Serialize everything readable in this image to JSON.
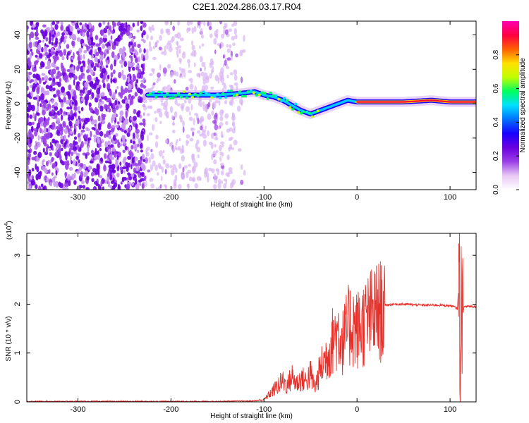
{
  "title": "C2E1.2024.286.03.17.R04",
  "chart_data": [
    {
      "type": "heatmap",
      "title": "C2E1.2024.286.03.17.R04",
      "xlabel": "Height of straight line (km)",
      "ylabel": "Frequency (Hz)",
      "xlim": [
        -355,
        128
      ],
      "ylim": [
        -50,
        48
      ],
      "x_ticks": [
        -300,
        -200,
        -100,
        0,
        100
      ],
      "y_ticks": [
        -40,
        -20,
        0,
        20,
        40
      ],
      "colorbar": {
        "label": "Normalized spectral amplitude",
        "range": [
          0,
          1
        ],
        "ticks": [
          0.0,
          0.2,
          0.4,
          0.6,
          0.8
        ]
      },
      "ridge": {
        "description_points_x": [
          -225,
          -200,
          -175,
          -150,
          -125,
          -110,
          -100,
          -90,
          -80,
          -70,
          -60,
          -50,
          -40,
          -30,
          -20,
          -10,
          0,
          20,
          50,
          80,
          100,
          110,
          128
        ],
        "description_points_y": [
          5,
          5,
          5,
          5,
          6,
          7,
          5,
          4,
          2,
          -1,
          -4,
          -6,
          -4,
          -2,
          0,
          2,
          1,
          1,
          1,
          2,
          1,
          1,
          1
        ]
      },
      "colormap": [
        "#ffffff",
        "#e8c8f4",
        "#9a40e6",
        "#6a00e0",
        "#1800ff",
        "#0070ff",
        "#00e0ff",
        "#00ff60",
        "#c0ff00",
        "#ffe000",
        "#ff6000",
        "#ff0040",
        "#ff00b0"
      ]
    },
    {
      "type": "line",
      "xlabel": "Height of straight line (km)",
      "ylabel": "SNR (10 * v/v)",
      "y_multiplier": "(x10",
      "y_multiplier_exp": "4",
      "xlim": [
        -355,
        128
      ],
      "ylim": [
        0,
        3.45
      ],
      "x_ticks": [
        -300,
        -200,
        -100,
        0,
        100
      ],
      "y_ticks": [
        0,
        1,
        2,
        3
      ],
      "series_color": "#e8302a",
      "series": [
        {
          "x": [
            -355,
            -300,
            -250,
            -200,
            -150,
            -110,
            -100,
            -95,
            -90,
            -85,
            -80,
            -75,
            -70,
            -65,
            -60,
            -55,
            -50,
            -45,
            -40,
            -35,
            -30,
            -25,
            -20,
            -15,
            -10,
            -5,
            0,
            5,
            10,
            15,
            20,
            25,
            30,
            40,
            50,
            60,
            70,
            80,
            90,
            100,
            105,
            108,
            110,
            111,
            112,
            113,
            115,
            120,
            128
          ],
          "y": [
            0.01,
            0.01,
            0.01,
            0.01,
            0.01,
            0.02,
            0.05,
            0.15,
            0.25,
            0.35,
            0.45,
            0.35,
            0.55,
            0.4,
            0.5,
            0.45,
            0.6,
            0.3,
            0.7,
            0.9,
            1.1,
            1.4,
            1.5,
            1.3,
            1.6,
            1.7,
            1.55,
            1.65,
            1.75,
            1.85,
            1.92,
            1.96,
            1.98,
            2.0,
            2.0,
            1.99,
            1.98,
            1.98,
            1.98,
            1.97,
            1.94,
            1.9,
            2.8,
            0.05,
            3.4,
            1.7,
            1.95,
            1.96,
            1.95
          ]
        }
      ]
    }
  ]
}
